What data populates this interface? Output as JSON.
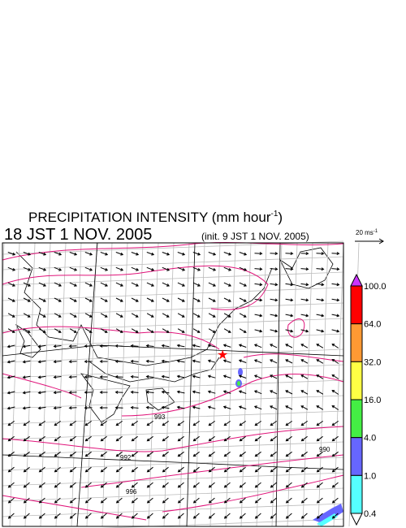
{
  "header": {
    "title": "PRECIPITATION INTENSITY (mm hour",
    "title_sup": "-1",
    "title_end": ")",
    "time": "18 JST 1 NOV. 2005",
    "init": "(init. 9 JST 1 NOV. 2005)"
  },
  "scale": {
    "label": "20 ms",
    "label_sup": "-1"
  },
  "colorbar": {
    "labels": [
      "100.0",
      "64.0",
      "32.0",
      "16.0",
      "4.0",
      "1.0",
      "0.4"
    ],
    "over_color": "#cc33ff",
    "colors": [
      "#ff0000",
      "#ff9933",
      "#ffff44",
      "#44ee44",
      "#6666ff",
      "#55ffff"
    ],
    "under_color": "#ffffff"
  },
  "contours": {
    "labels": [
      "993",
      "992",
      "996",
      "990"
    ]
  }
}
